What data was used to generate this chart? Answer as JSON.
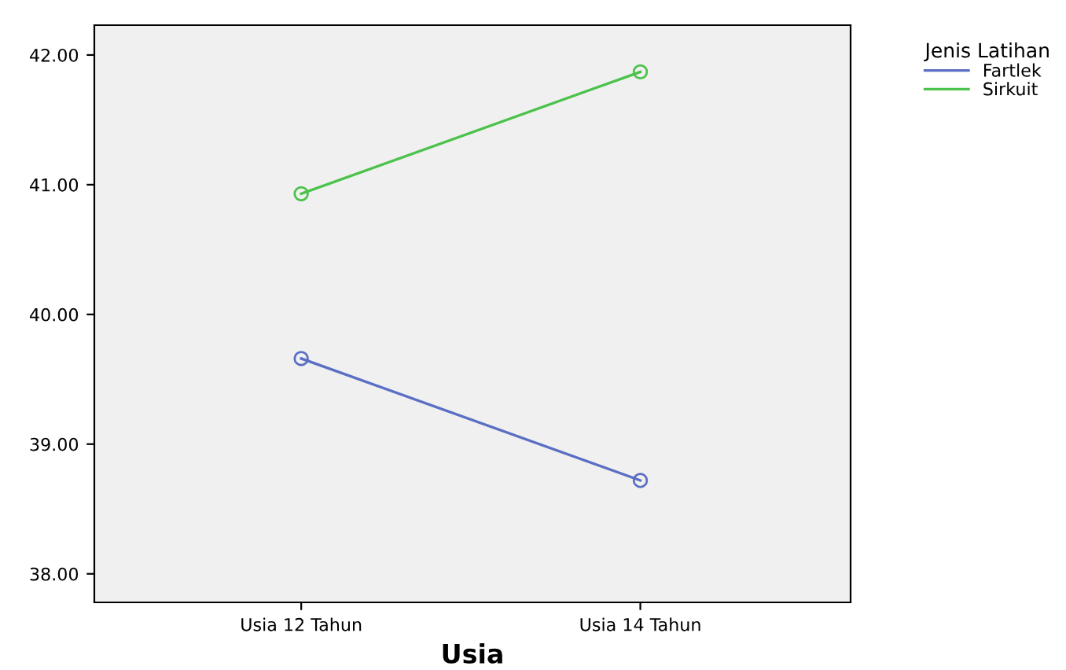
{
  "chart_data": {
    "type": "line",
    "xlabel": "Usia",
    "legend_title": "Jenis Latihan",
    "categories": [
      "Usia 12 Tahun",
      "Usia 14 Tahun"
    ],
    "series": [
      {
        "name": "Fartlek",
        "color": "#5a6fc4",
        "values": [
          39.66,
          38.72
        ]
      },
      {
        "name": "Sirkuit",
        "color": "#4bc24b",
        "values": [
          40.93,
          41.87
        ]
      }
    ],
    "ylim": [
      37.78,
      42.23
    ],
    "yticks": [
      {
        "value": 38,
        "label": "38.00"
      },
      {
        "value": 39,
        "label": "39.00"
      },
      {
        "value": 40,
        "label": "40.00"
      },
      {
        "value": 41,
        "label": "41.00"
      },
      {
        "value": 42,
        "label": "42.00"
      }
    ],
    "marker": "circle",
    "line_style": "solid",
    "grid": false,
    "legend": "top right"
  }
}
